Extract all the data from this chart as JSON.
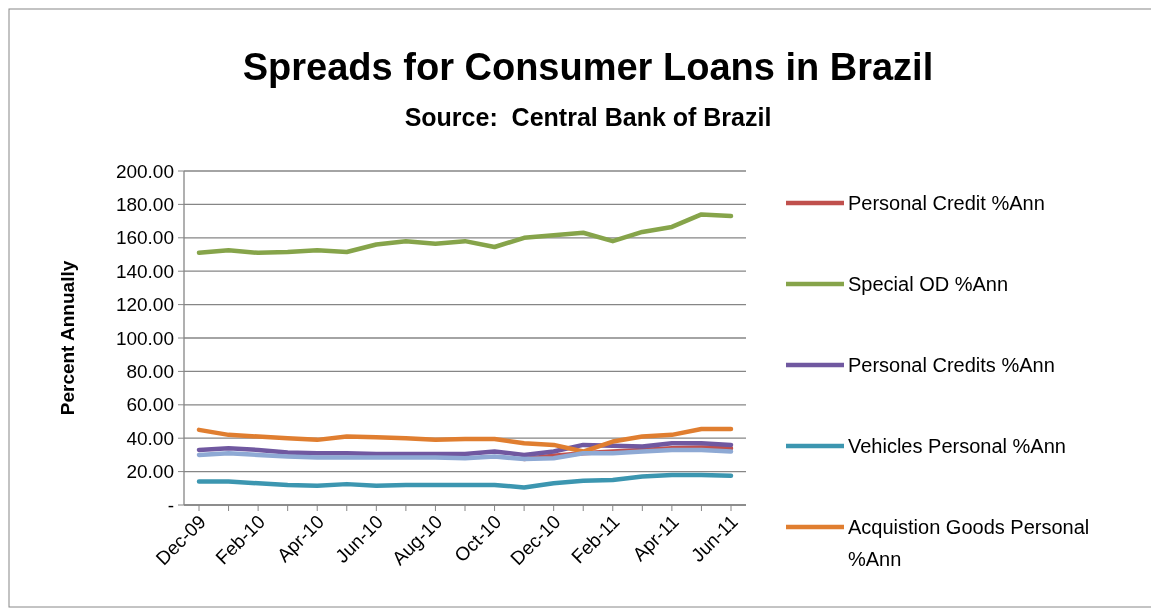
{
  "chart_data": {
    "type": "line",
    "title": "Spreads for Consumer Loans in Brazil",
    "subtitle": "Source:  Central Bank of Brazil",
    "ylabel": "Percent Annually",
    "categories": [
      "Dec-09",
      null,
      "Feb-10",
      null,
      "Apr-10",
      null,
      "Jun-10",
      null,
      "Aug-10",
      null,
      "Oct-10",
      null,
      "Dec-10",
      null,
      "Feb-11",
      null,
      "Apr-11",
      null,
      "Jun-11"
    ],
    "series": [
      {
        "name": "Personal Credit %Ann",
        "color": "#c0504d",
        "values": [
          null,
          null,
          null,
          null,
          null,
          null,
          null,
          null,
          null,
          null,
          null,
          27.5,
          29.5,
          31,
          32,
          33,
          34,
          34.5,
          34
        ]
      },
      {
        "name": "Special OD %Ann",
        "color": "#86a44a",
        "values": [
          151,
          152.5,
          151,
          151.5,
          152.5,
          151.5,
          156,
          158,
          156.5,
          158,
          154.5,
          160,
          161.5,
          163,
          158,
          163.5,
          166.5,
          174,
          173
        ]
      },
      {
        "name": "Personal Credits %Ann",
        "color": "#7058a0",
        "values": [
          33,
          34,
          33,
          31.5,
          31,
          31,
          30.5,
          30.5,
          30.5,
          30.5,
          32,
          30,
          32,
          36,
          35.5,
          35,
          37,
          37,
          36
        ]
      },
      {
        "name": "Vehicles Personal %Ann",
        "color": "#3c96b0",
        "values": [
          14,
          14,
          13,
          12,
          11.5,
          12.5,
          11.5,
          12,
          12,
          12,
          12,
          10.5,
          13,
          14.5,
          15,
          17,
          18,
          18,
          17.5
        ]
      },
      {
        "name": "Acquistion Goods Personal %Ann",
        "color": "#e07e30",
        "values": [
          45,
          42,
          41,
          40,
          39,
          41,
          40.5,
          40,
          39,
          39.5,
          39.5,
          37,
          36,
          32,
          38,
          41,
          42,
          45.5,
          45.5
        ]
      },
      {
        "color": "#8ea9d4",
        "values": [
          30,
          31,
          30,
          29,
          28.5,
          28.5,
          28.5,
          28.5,
          28.5,
          28,
          29,
          27.5,
          28,
          31,
          31,
          32,
          33,
          33,
          32
        ]
      }
    ],
    "ylim": [
      0,
      200
    ],
    "yticks": [
      {
        "value": 0,
        "label": "-"
      },
      {
        "value": 20,
        "label": "20.00"
      },
      {
        "value": 40,
        "label": "40.00"
      },
      {
        "value": 60,
        "label": "60.00"
      },
      {
        "value": 80,
        "label": "80.00"
      },
      {
        "value": 100,
        "label": "100.00"
      },
      {
        "value": 120,
        "label": "120.00"
      },
      {
        "value": 140,
        "label": "140.00"
      },
      {
        "value": 160,
        "label": "160.00"
      },
      {
        "value": 180,
        "label": "180.00"
      },
      {
        "value": 200,
        "label": "200.00"
      }
    ],
    "grid": "y",
    "legend": "right",
    "line_style": "solid",
    "marker": "none"
  }
}
